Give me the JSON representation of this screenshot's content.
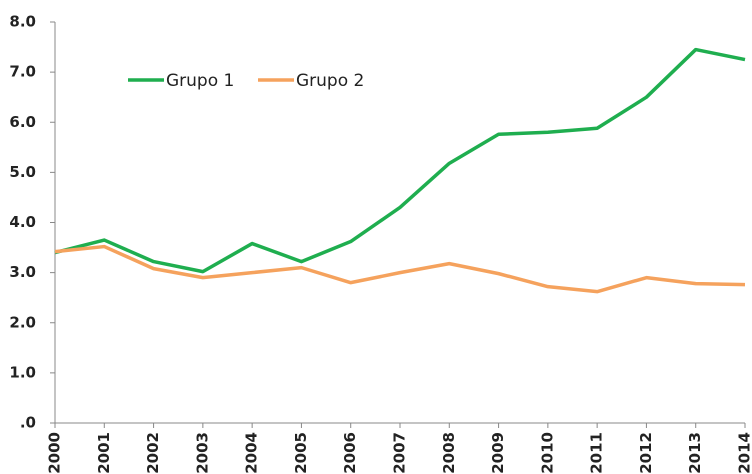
{
  "chart_data": {
    "type": "line",
    "categories": [
      "2000",
      "2001",
      "2002",
      "2003",
      "2004",
      "2005",
      "2006",
      "2007",
      "2008",
      "2009",
      "2010",
      "2011",
      "2012",
      "2013",
      "2014"
    ],
    "series": [
      {
        "name": "Grupo 1",
        "color": "#1fae4f",
        "values": [
          3.4,
          3.65,
          3.22,
          3.02,
          3.58,
          3.22,
          3.62,
          4.3,
          5.18,
          5.76,
          5.8,
          5.88,
          6.5,
          7.45,
          7.25
        ]
      },
      {
        "name": "Grupo 2",
        "color": "#f5a25d",
        "values": [
          3.42,
          3.52,
          3.08,
          2.9,
          3.0,
          3.1,
          2.8,
          3.0,
          3.18,
          2.98,
          2.72,
          2.62,
          2.9,
          2.78,
          2.76
        ]
      }
    ],
    "ylim": [
      0,
      8
    ],
    "yticks": [
      {
        "value": 0,
        "label": ".0"
      },
      {
        "value": 1,
        "label": "1.0"
      },
      {
        "value": 2,
        "label": "2.0"
      },
      {
        "value": 3,
        "label": "3.0"
      },
      {
        "value": 4,
        "label": "4.0"
      },
      {
        "value": 5,
        "label": "5.0"
      },
      {
        "value": 6,
        "label": "6.0"
      },
      {
        "value": 7,
        "label": "7.0"
      },
      {
        "value": 8,
        "label": "8.0"
      }
    ],
    "grid": false,
    "legend": "top-left"
  }
}
